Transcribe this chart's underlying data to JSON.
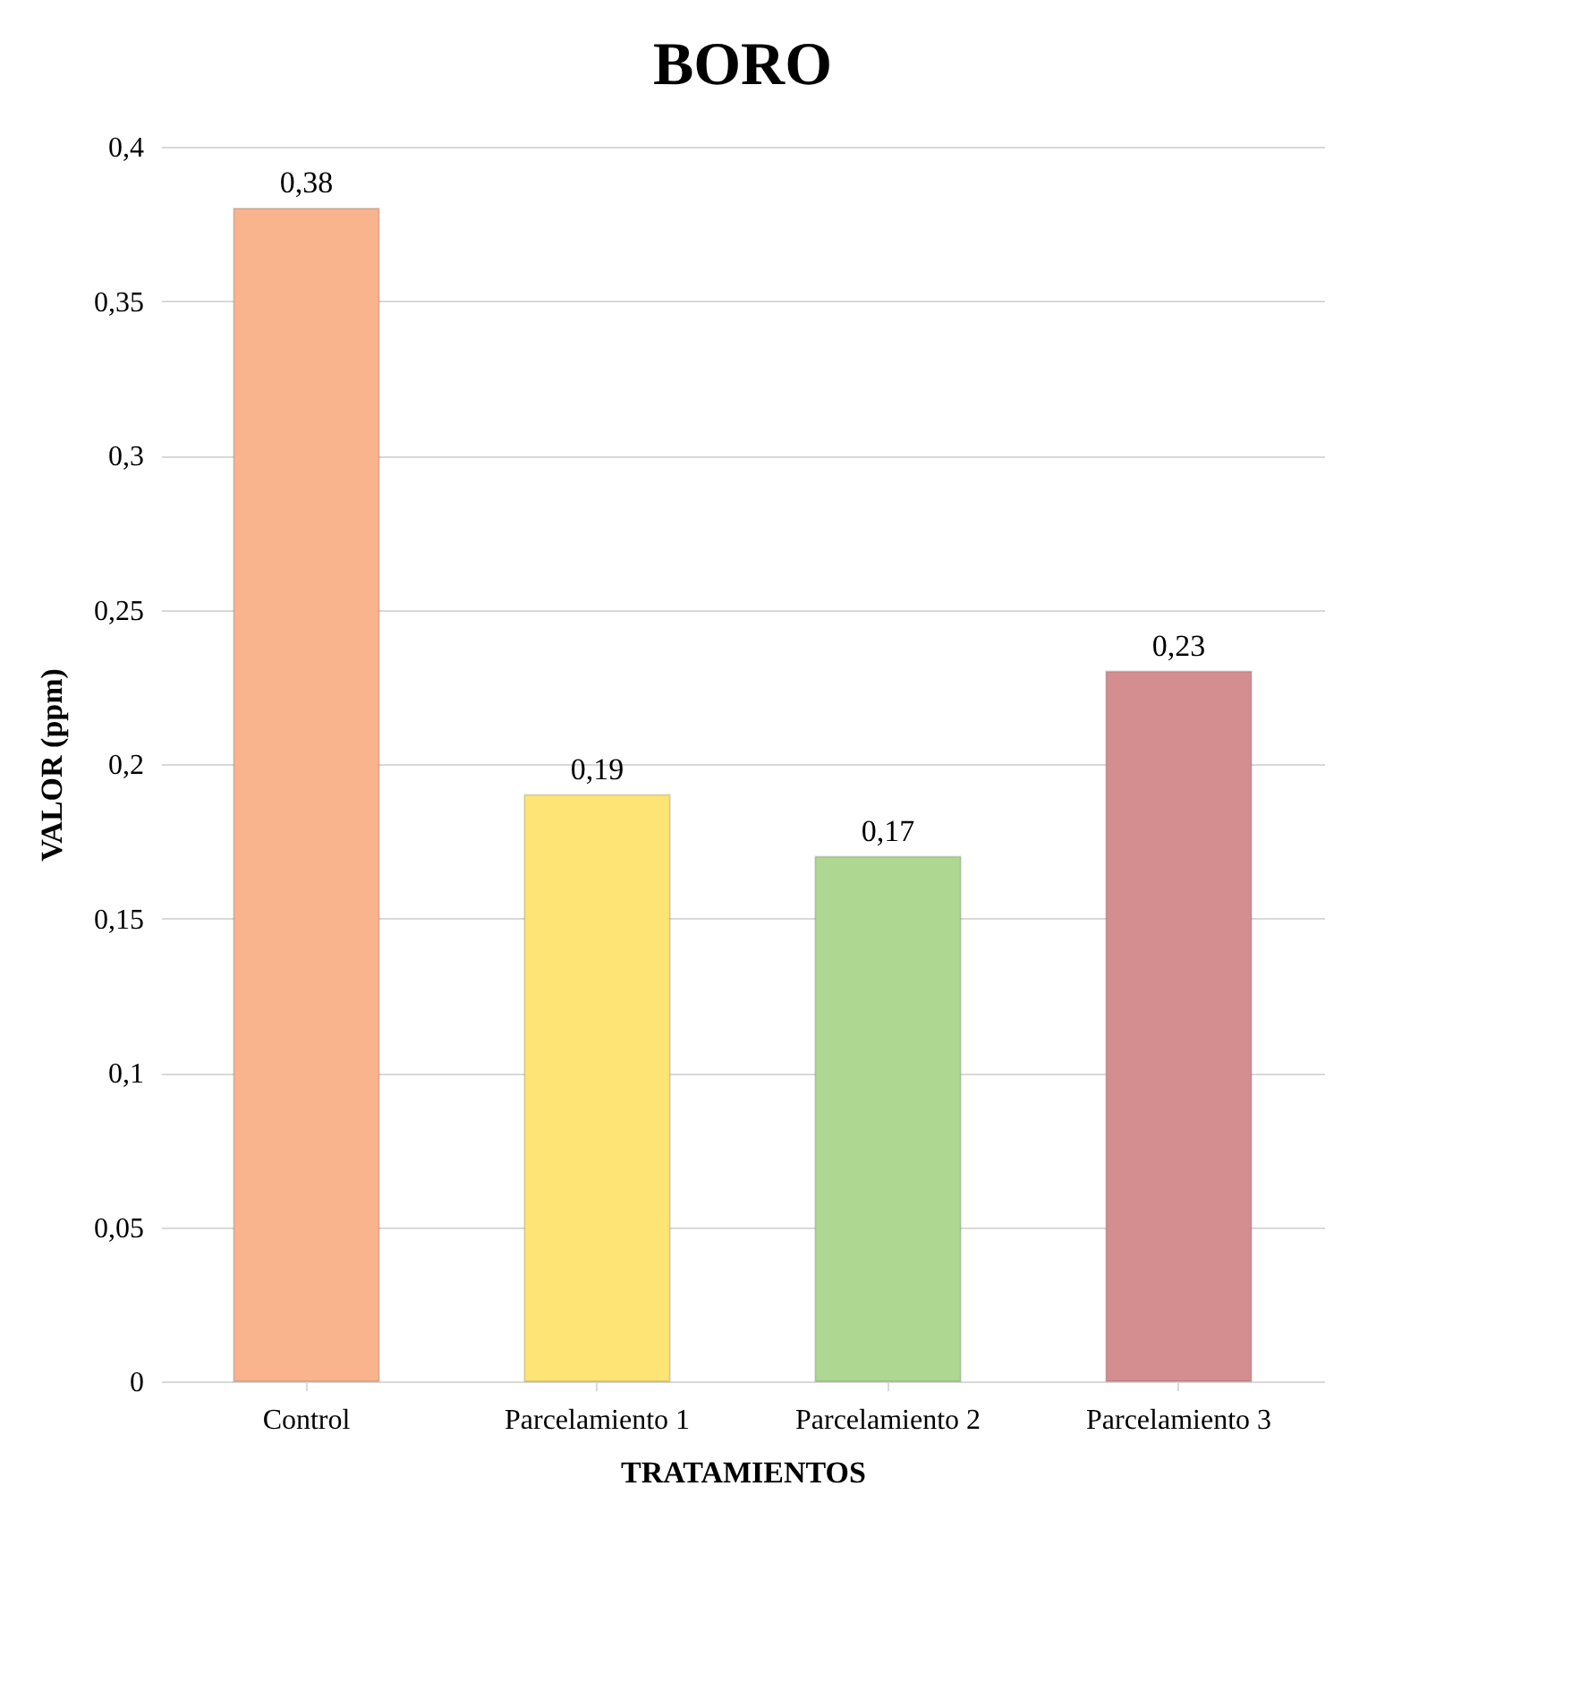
{
  "chart_data": {
    "type": "bar",
    "title": "BORO",
    "xlabel": "TRATAMIENTOS",
    "ylabel": "VALOR (ppm)",
    "categories": [
      "Control",
      "Parcelamiento 1",
      "Parcelamiento 2",
      "Parcelamiento 3"
    ],
    "values": [
      0.38,
      0.19,
      0.17,
      0.23
    ],
    "colors": [
      "#f9b48e",
      "#fde474",
      "#aed891",
      "#d58e90"
    ],
    "value_labels": [
      "0,38",
      "0,19",
      "0,17",
      "0,23"
    ],
    "ylim": [
      0,
      0.4
    ],
    "yticks": [
      0,
      {
        "value": 0.05,
        "label": "0,05"
      },
      {
        "value": 0.1,
        "label": "0,1"
      },
      {
        "value": 0.15,
        "label": "0,15"
      },
      {
        "value": 0.2,
        "label": "0,2"
      },
      {
        "value": 0.25,
        "label": "0,25"
      },
      {
        "value": 0.3,
        "label": "0,3"
      },
      {
        "value": 0.35,
        "label": "0,35"
      },
      {
        "value": 0.4,
        "label": "0,4"
      }
    ],
    "grid": "y"
  }
}
